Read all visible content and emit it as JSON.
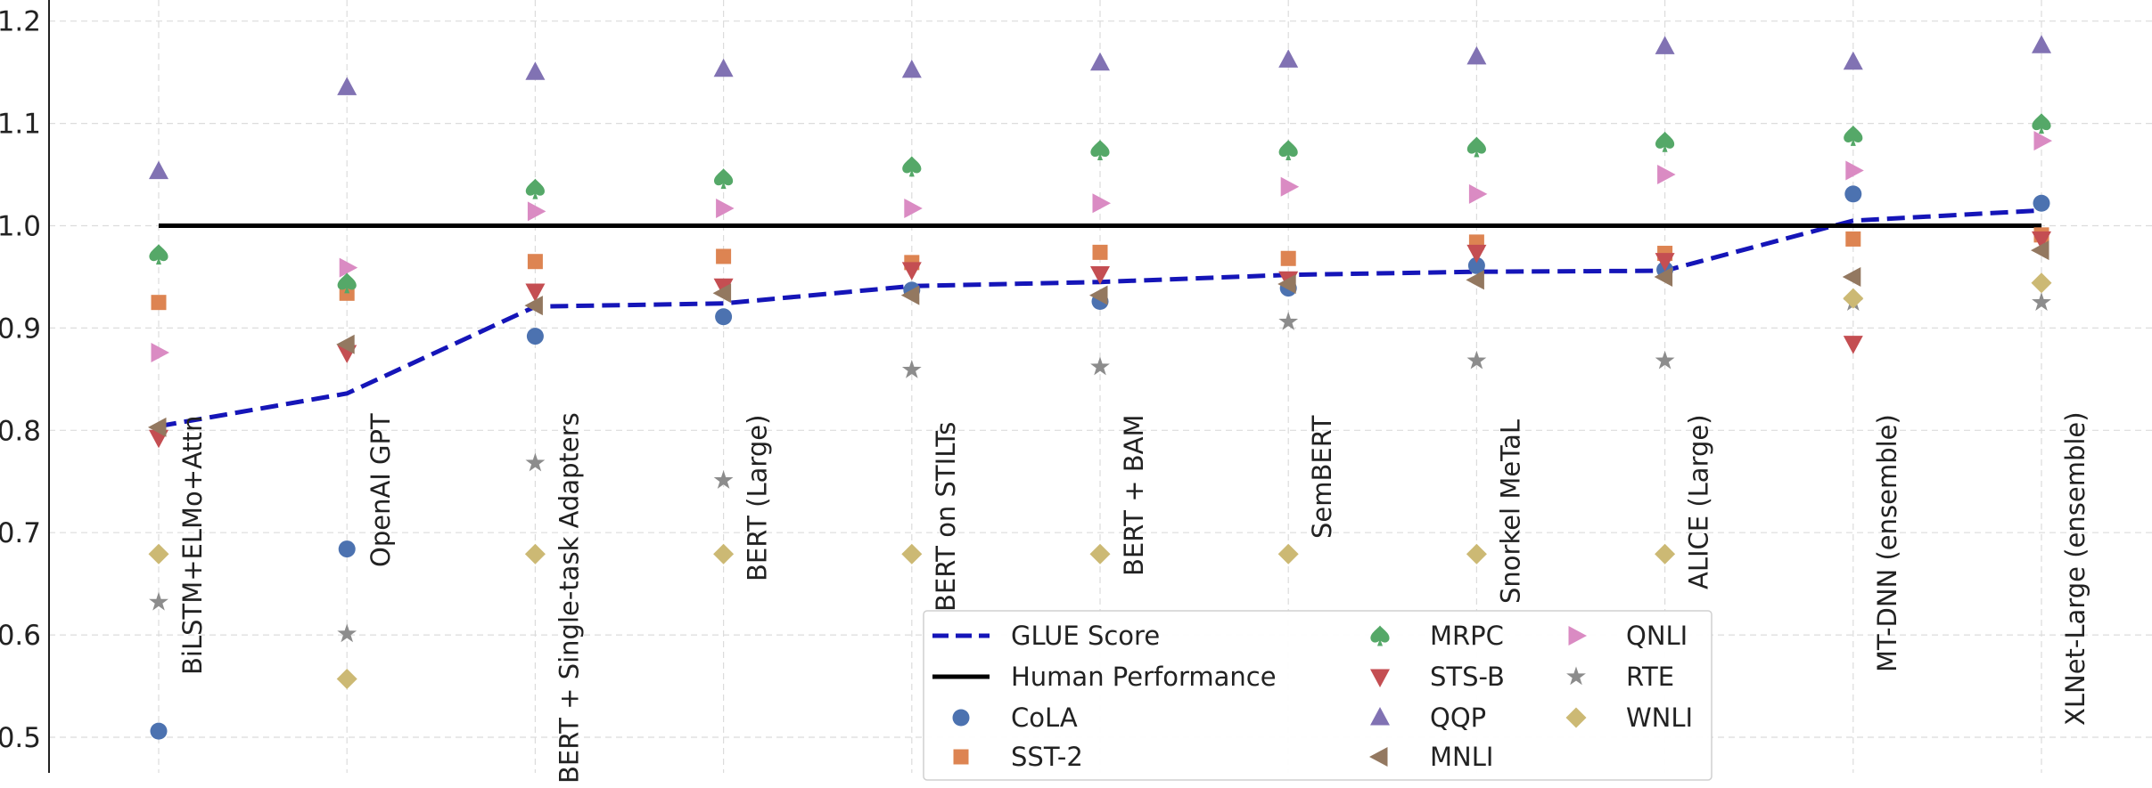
{
  "chart_data": {
    "type": "scatter",
    "title": "",
    "xlabel": "",
    "ylabel": "",
    "ylim": [
      0.47,
      1.232
    ],
    "yticks": [
      0.5,
      0.6,
      0.7,
      0.8,
      0.9,
      1.0,
      1.1,
      1.2
    ],
    "ytick_labels": [
      "0.5",
      "0.6",
      "0.7",
      "0.8",
      "0.9",
      "1.0",
      "1.1",
      "1.2"
    ],
    "grid": true,
    "legend_position": "bottom-center",
    "categories": [
      "BiLSTM+ELMo+Attn",
      "OpenAI GPT",
      "BERT + Single-task Adapters",
      "BERT (Large)",
      "BERT on STILTs",
      "BERT + BAM",
      "SemBERT",
      "Snorkel MeTaL",
      "ALICE (Large)",
      "MT-DNN (ensemble)",
      "XLNet-Large (ensemble)"
    ],
    "lines": [
      {
        "name": "GLUE Score",
        "style": "dashed",
        "color": "#1515b8",
        "values": [
          0.804,
          0.836,
          0.921,
          0.924,
          0.941,
          0.945,
          0.952,
          0.955,
          0.956,
          1.005,
          1.015
        ]
      },
      {
        "name": "Human Performance",
        "style": "solid",
        "color": "#000000",
        "values": [
          1.0,
          1.0,
          1.0,
          1.0,
          1.0,
          1.0,
          1.0,
          1.0,
          1.0,
          1.0,
          1.0
        ]
      }
    ],
    "series": [
      {
        "name": "CoLA",
        "marker": "circle",
        "color": "#4c72b0",
        "values": [
          0.506,
          0.684,
          0.892,
          0.911,
          0.937,
          0.926,
          0.939,
          0.961,
          0.957,
          1.031,
          1.022
        ]
      },
      {
        "name": "SST-2",
        "marker": "square",
        "color": "#dd8452",
        "values": [
          0.925,
          0.934,
          0.965,
          0.97,
          0.964,
          0.974,
          0.968,
          0.984,
          0.973,
          0.987,
          0.991
        ]
      },
      {
        "name": "MRPC",
        "marker": "spade",
        "color": "#55a868",
        "values": [
          0.972,
          0.944,
          1.036,
          1.046,
          1.058,
          1.074,
          1.074,
          1.077,
          1.082,
          1.088,
          1.1
        ]
      },
      {
        "name": "STS-B",
        "marker": "triangle-down",
        "color": "#c44e52",
        "values": [
          0.793,
          0.876,
          0.936,
          0.941,
          0.957,
          0.953,
          0.948,
          0.974,
          0.966,
          0.885,
          0.987
        ]
      },
      {
        "name": "QQP",
        "marker": "triangle-up",
        "color": "#8172b3",
        "values": [
          1.053,
          1.135,
          1.15,
          1.153,
          1.152,
          1.159,
          1.162,
          1.165,
          1.175,
          1.16,
          1.176
        ]
      },
      {
        "name": "MNLI",
        "marker": "triangle-left",
        "color": "#937860",
        "values": [
          0.803,
          0.884,
          0.922,
          0.934,
          0.932,
          0.932,
          0.943,
          0.947,
          0.95,
          0.95,
          0.976
        ]
      },
      {
        "name": "QNLI",
        "marker": "triangle-right",
        "color": "#da8bc3",
        "values": [
          0.876,
          0.959,
          1.014,
          1.017,
          1.017,
          1.022,
          1.038,
          1.031,
          1.05,
          1.054,
          1.083
        ]
      },
      {
        "name": "RTE",
        "marker": "star",
        "color": "#8c8c8c",
        "values": [
          0.632,
          0.601,
          0.768,
          0.751,
          0.859,
          0.862,
          0.906,
          0.868,
          0.868,
          0.925,
          0.925
        ]
      },
      {
        "name": "WNLI",
        "marker": "diamond",
        "color": "#ccb974",
        "values": [
          0.679,
          0.557,
          0.679,
          0.679,
          0.679,
          0.679,
          0.679,
          0.679,
          0.679,
          0.929,
          0.944
        ]
      }
    ]
  }
}
